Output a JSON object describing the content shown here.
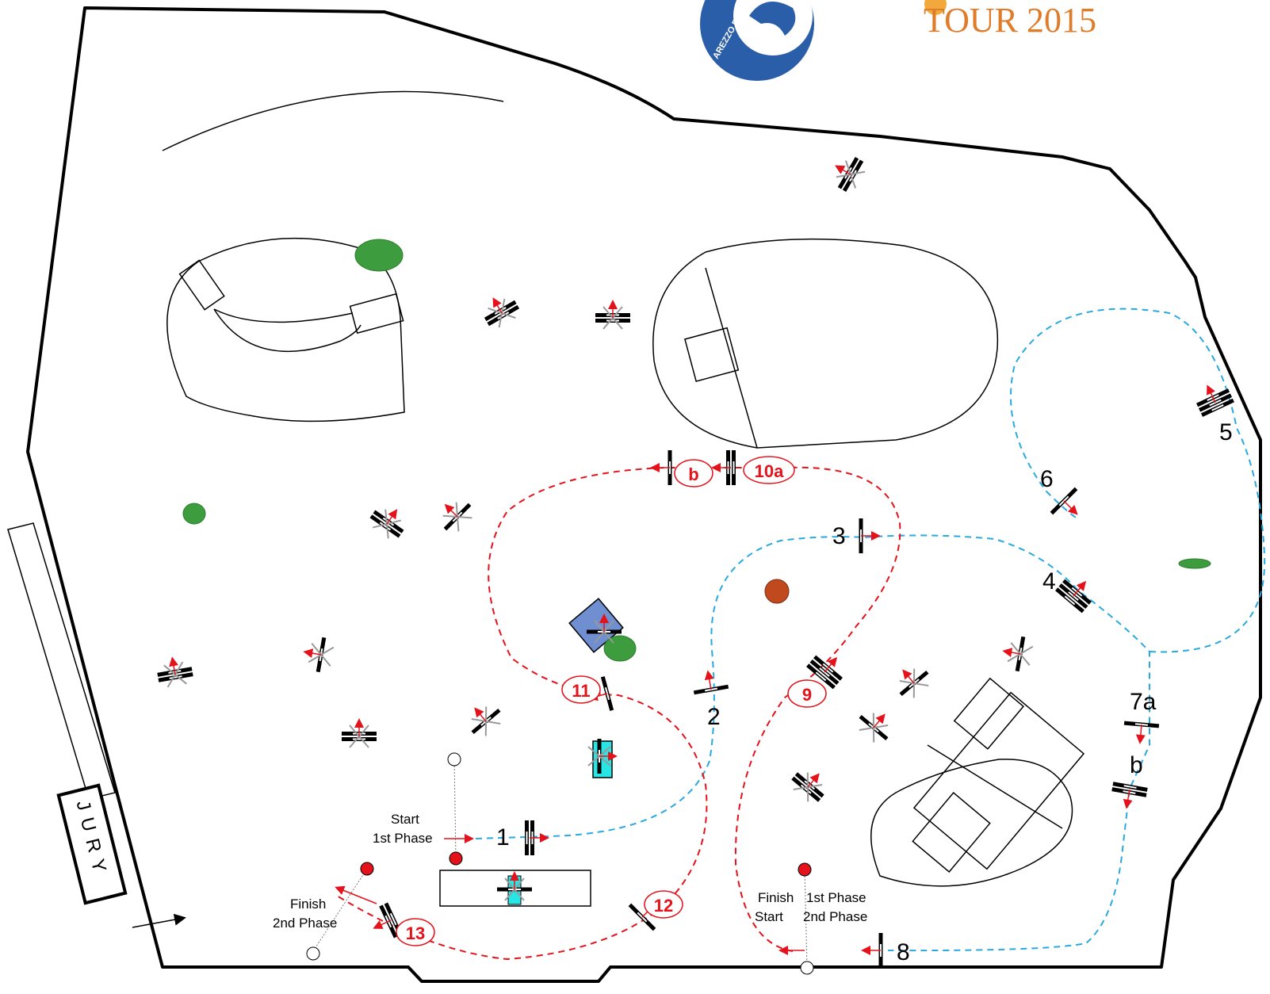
{
  "logos": {
    "club_text": "AREZZO EQUESTRIAN",
    "tour_text": "TOUR 2015"
  },
  "jury": {
    "label": "JURY"
  },
  "phase_labels": {
    "start_1": "Start",
    "start_1b": "1st Phase",
    "finish_2": "Finish",
    "finish_2b": "2nd Phase",
    "finish_1": "Finish",
    "finish_1b": "1st Phase",
    "start_2": "Start",
    "start_2b": "2nd Phase"
  },
  "obstacles_phase1": [
    {
      "label": "1"
    },
    {
      "label": "2"
    },
    {
      "label": "3"
    },
    {
      "label": "4"
    },
    {
      "label": "5"
    },
    {
      "label": "6"
    },
    {
      "label": "7a"
    },
    {
      "label": "b"
    },
    {
      "label": "8"
    }
  ],
  "obstacles_phase2": [
    {
      "label": "9"
    },
    {
      "label": "10a"
    },
    {
      "label": "b"
    },
    {
      "label": "11"
    },
    {
      "label": "12"
    },
    {
      "label": "13"
    }
  ],
  "colors": {
    "phase1_route": "#29a9e0",
    "phase2_route": "#e4121b",
    "marker_red": "#e4121b",
    "tree_green": "#3d9c3d",
    "water": "#29e6e6",
    "pond": "#6f8fd0",
    "umbrella": "#c04a1e"
  }
}
